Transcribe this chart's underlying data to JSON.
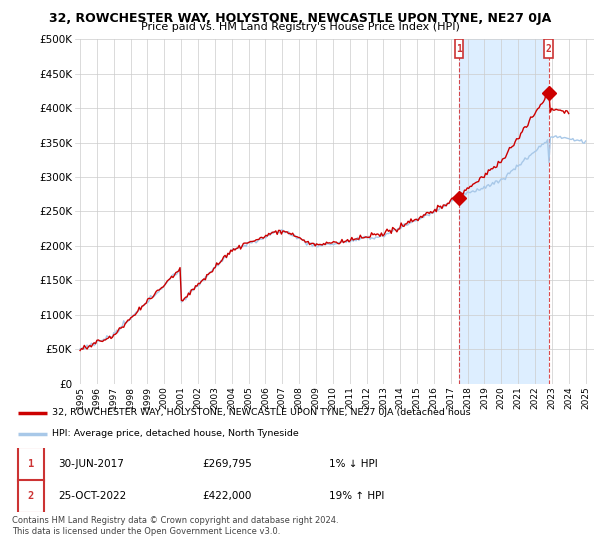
{
  "title": "32, ROWCHESTER WAY, HOLYSTONE, NEWCASTLE UPON TYNE, NE27 0JA",
  "subtitle": "Price paid vs. HM Land Registry's House Price Index (HPI)",
  "ylabel_ticks": [
    "£0",
    "£50K",
    "£100K",
    "£150K",
    "£200K",
    "£250K",
    "£300K",
    "£350K",
    "£400K",
    "£450K",
    "£500K"
  ],
  "ytick_values": [
    0,
    50000,
    100000,
    150000,
    200000,
    250000,
    300000,
    350000,
    400000,
    450000,
    500000
  ],
  "ylim": [
    0,
    500000
  ],
  "xlim_start": 1994.7,
  "xlim_end": 2025.5,
  "hpi_color": "#a8c8e8",
  "price_color": "#cc0000",
  "shade_color": "#ddeeff",
  "point1_x": 2017.5,
  "point1_y": 269795,
  "point2_x": 2022.8,
  "point2_y": 422000,
  "legend_label_price": "32, ROWCHESTER WAY, HOLYSTONE, NEWCASTLE UPON TYNE, NE27 0JA (detached hous",
  "legend_label_hpi": "HPI: Average price, detached house, North Tyneside",
  "table_row1": [
    "1",
    "30-JUN-2017",
    "£269,795",
    "1% ↓ HPI"
  ],
  "table_row2": [
    "2",
    "25-OCT-2022",
    "£422,000",
    "19% ↑ HPI"
  ],
  "footer": "Contains HM Land Registry data © Crown copyright and database right 2024.\nThis data is licensed under the Open Government Licence v3.0.",
  "background_color": "#ffffff",
  "grid_color": "#cccccc",
  "box_color": "#cc3333"
}
